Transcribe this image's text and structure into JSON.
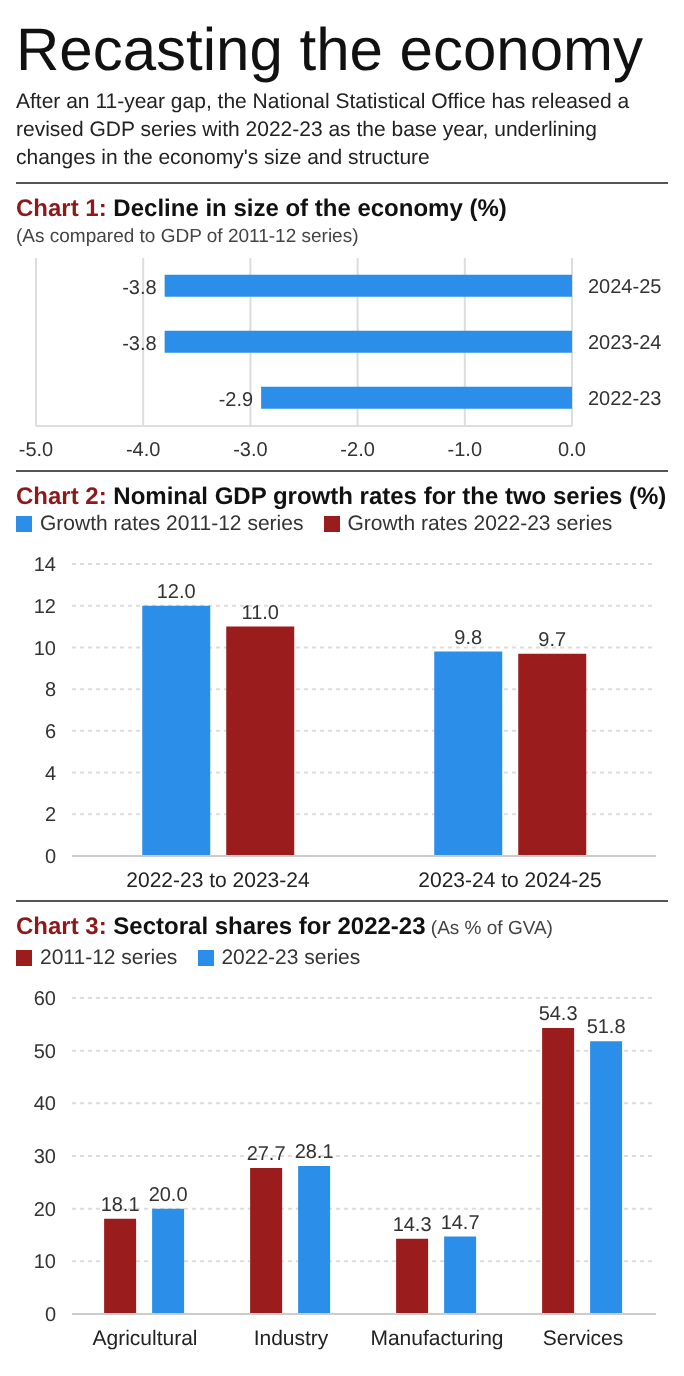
{
  "chart_data": [
    {
      "type": "bar",
      "orientation": "horizontal",
      "annotations": [
        "Recasting the economy",
        "After an 11-year gap, the National Statistical Office has released a revised GDP series with 2022-23 as the base year, underlining changes in the economy's size and structure"
      ],
      "title": "Chart 1: Decline in size of the economy (%)",
      "subtitle": "(As compared to GDP of 2011-12 series)",
      "categories": [
        "2024-25",
        "2023-24",
        "2022-23"
      ],
      "values": [
        -3.8,
        -3.8,
        -2.9
      ],
      "color": "#2b8ee8",
      "xlim": [
        -5,
        0
      ],
      "xticks": [
        {
          "value": -5,
          "label": "-5.0"
        },
        {
          "value": -4,
          "label": "-4.0"
        },
        {
          "value": -3,
          "label": "-3.0"
        },
        {
          "value": -2,
          "label": "-2.0"
        },
        {
          "value": -1,
          "label": "-1.0"
        },
        {
          "value": 0,
          "label": "0.0"
        }
      ],
      "grid": "x",
      "data_labels": true
    },
    {
      "type": "bar",
      "title": "Chart 2: Nominal GDP growth rates for the two series (%)",
      "categories": [
        "2022-23 to 2023-24",
        "2023-24 to 2024-25"
      ],
      "series": [
        {
          "name": "Growth rates 2011-12 series",
          "color": "#2b8ee8",
          "values": [
            12.0,
            9.8
          ],
          "value_labels": [
            "12.0",
            "9.8"
          ]
        },
        {
          "name": "Growth rates 2022-23 series",
          "color": "#9b1c1c",
          "values": [
            11.0,
            9.7
          ],
          "value_labels": [
            "11.0",
            "9.7"
          ]
        }
      ],
      "ylim": [
        0,
        14
      ],
      "yticks": [
        0,
        2,
        4,
        6,
        8,
        10,
        12,
        14
      ],
      "grid": "y",
      "legend": "top left"
    },
    {
      "type": "bar",
      "title": "Chart 3: Sectoral shares for 2022-23",
      "subtitle": "(As % of GVA)",
      "categories": [
        "Agricultural",
        "Industry",
        "Manufacturing",
        "Services"
      ],
      "series": [
        {
          "name": "2011-12 series",
          "color": "#9b1c1c",
          "values": [
            18.1,
            27.7,
            14.3,
            54.3
          ],
          "value_labels": [
            "18.1",
            "27.7",
            "14.3",
            "54.3"
          ]
        },
        {
          "name": "2022-23 series",
          "color": "#2b8ee8",
          "values": [
            20.0,
            28.1,
            14.7,
            51.8
          ],
          "value_labels": [
            "20.0",
            "28.1",
            "14.7",
            "51.8"
          ]
        }
      ],
      "ylim": [
        0,
        60
      ],
      "yticks": [
        0,
        10,
        20,
        30,
        40,
        50,
        60
      ],
      "grid": "y",
      "legend": "top left"
    }
  ]
}
